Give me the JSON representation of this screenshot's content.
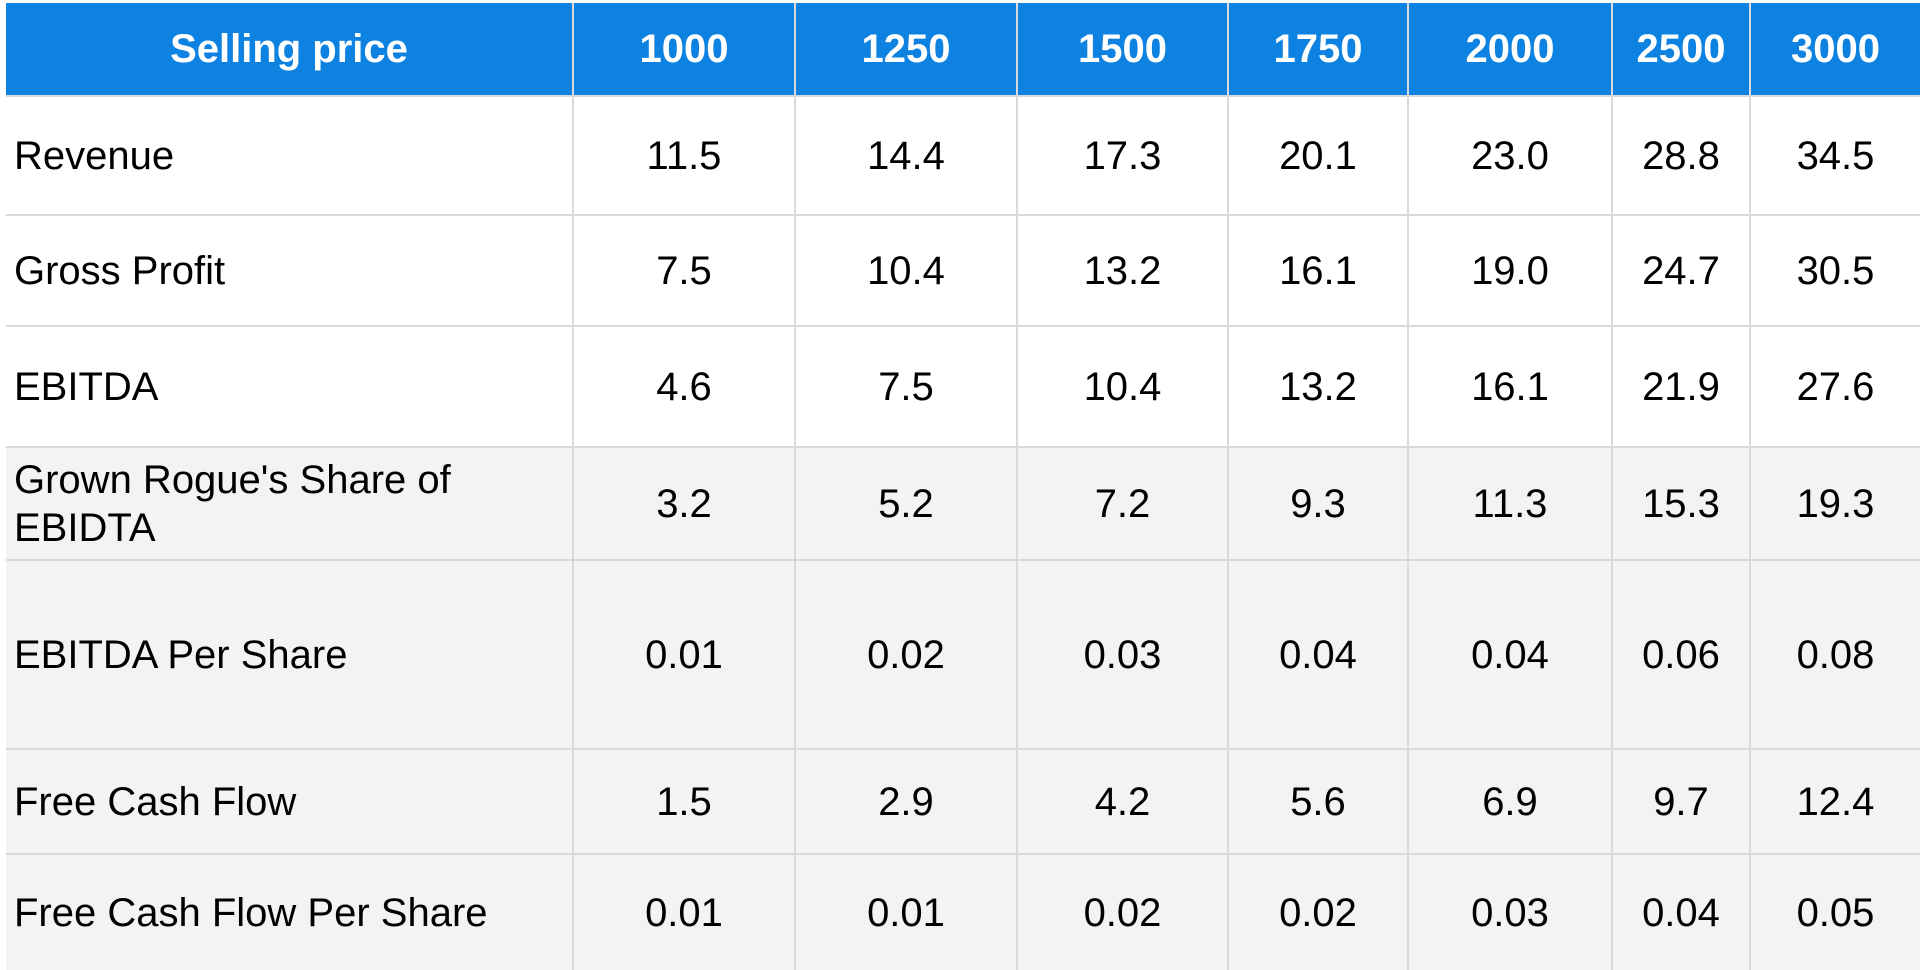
{
  "chart_data": {
    "type": "table",
    "columns": [
      "Selling price",
      "1000",
      "1250",
      "1500",
      "1750",
      "2000",
      "2500",
      "3000"
    ],
    "rows": [
      {
        "label": "Revenue",
        "values": [
          "11.5",
          "14.4",
          "17.3",
          "20.1",
          "23.0",
          "28.8",
          "34.5"
        ]
      },
      {
        "label": "Gross Profit",
        "values": [
          "7.5",
          "10.4",
          "13.2",
          "16.1",
          "19.0",
          "24.7",
          "30.5"
        ]
      },
      {
        "label": "EBITDA",
        "values": [
          "4.6",
          "7.5",
          "10.4",
          "13.2",
          "16.1",
          "21.9",
          "27.6"
        ]
      },
      {
        "label": "Grown Rogue's Share of EBIDTA",
        "values": [
          "3.2",
          "5.2",
          "7.2",
          "9.3",
          "11.3",
          "15.3",
          "19.3"
        ]
      },
      {
        "label": "EBITDA Per Share",
        "values": [
          "0.01",
          "0.02",
          "0.03",
          "0.04",
          "0.04",
          "0.06",
          "0.08"
        ]
      },
      {
        "label": "Free Cash Flow",
        "values": [
          "1.5",
          "2.9",
          "4.2",
          "5.6",
          "6.9",
          "9.7",
          "12.4"
        ]
      },
      {
        "label": "Free Cash Flow Per Share",
        "values": [
          "0.01",
          "0.01",
          "0.02",
          "0.02",
          "0.03",
          "0.04",
          "0.05"
        ]
      }
    ]
  },
  "colors": {
    "header_background": "#0e82e1",
    "header_text": "#ffffff",
    "row_white": "#ffffff",
    "row_grey": "#f3f3f3",
    "grid_lines": "#d9d9d9"
  }
}
